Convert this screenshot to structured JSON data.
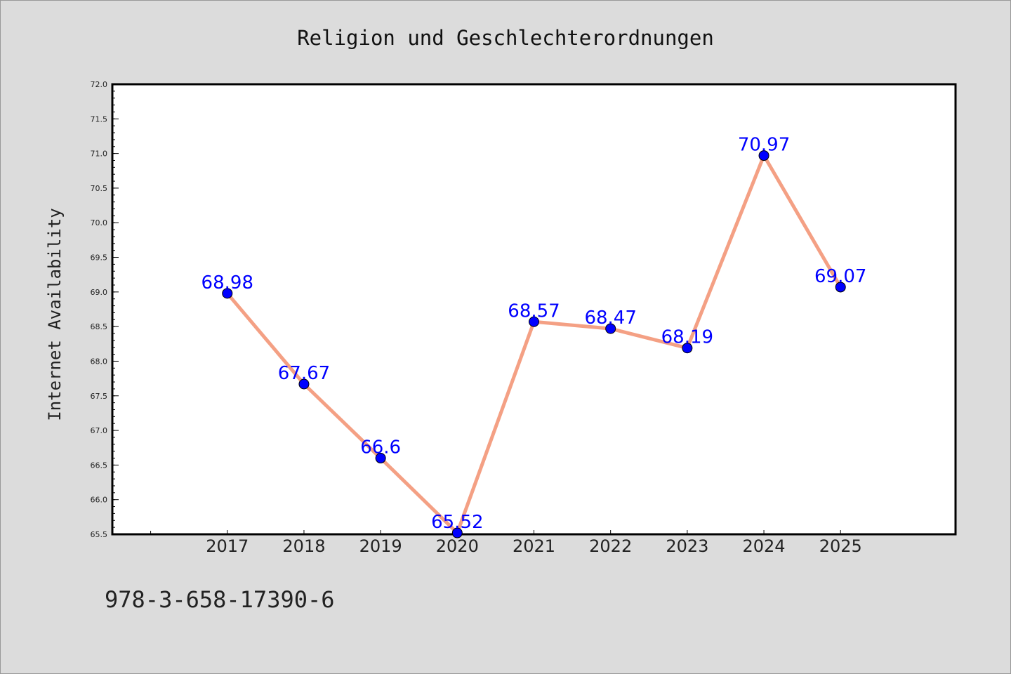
{
  "chart_data": {
    "type": "line",
    "title": "Religion und Geschlechterordnungen",
    "ylabel": "Internet Availability",
    "xlabel": "",
    "categories": [
      "2017",
      "2018",
      "2019",
      "2020",
      "2021",
      "2022",
      "2023",
      "2024",
      "2025"
    ],
    "series": [
      {
        "values": [
          68.98,
          67.67,
          66.6,
          65.52,
          68.57,
          68.47,
          68.19,
          70.97,
          69.07
        ],
        "labels": [
          "68.98",
          "67.67",
          "66.6",
          "65.52",
          "68.57",
          "68.47",
          "68.19",
          "70.97",
          "69.07"
        ]
      }
    ],
    "ylim": [
      65.5,
      72.0
    ],
    "yticks": [
      "65.5",
      "66.0",
      "66.5",
      "67.0",
      "67.5",
      "68.0",
      "68.5",
      "69.0",
      "69.5",
      "70.0",
      "70.5",
      "71.0",
      "71.5",
      "72.0"
    ],
    "grid": false,
    "line_color": "#f4a084",
    "marker_color": "#0000ff",
    "label_color": "#0000ff",
    "background_color": "#dcdcdc",
    "plot_background_color": "#ffffff"
  },
  "footer": {
    "isbn": "978-3-658-17390-6"
  }
}
